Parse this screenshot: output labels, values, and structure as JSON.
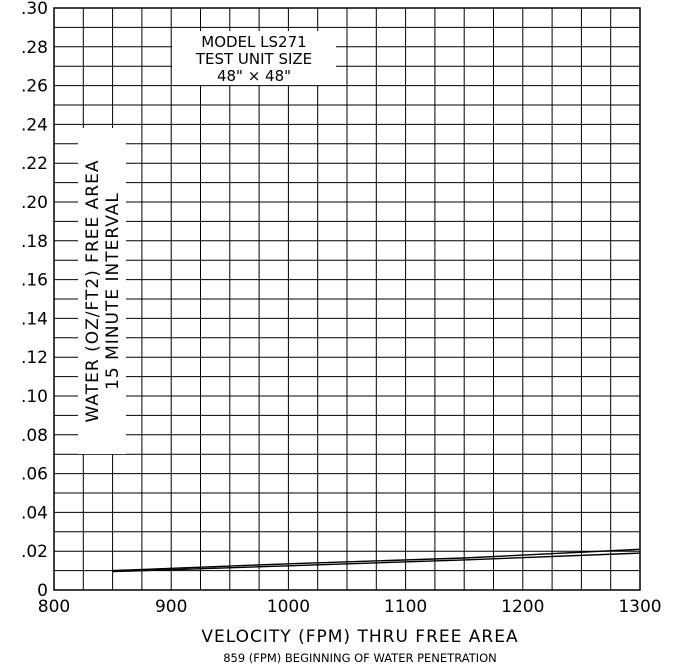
{
  "chart_data": {
    "type": "line",
    "title": "MODEL LS271",
    "subtitle_lines": [
      "TEST UNIT SIZE",
      "48\" × 48\""
    ],
    "ylabel_lines": [
      "WATER (OZ/FT2) FREE AREA",
      "15 MINUTE INTERVAL"
    ],
    "xlabel": "VELOCITY (FPM) THRU FREE AREA",
    "note": "859 (FPM) BEGINNING OF WATER PENETRATION",
    "xlim": [
      800,
      1300
    ],
    "ylim": [
      0,
      0.3
    ],
    "x_ticks": [
      800,
      900,
      1000,
      1100,
      1200,
      1300
    ],
    "x_tick_labels": [
      "800",
      "900",
      "1000",
      "1100",
      "1200",
      "1300"
    ],
    "y_ticks": [
      0,
      0.02,
      0.04,
      0.06,
      0.08,
      0.1,
      0.12,
      0.14,
      0.16,
      0.18,
      0.2,
      0.22,
      0.24,
      0.26,
      0.28,
      0.3
    ],
    "y_tick_labels": [
      "0",
      ".02",
      ".04",
      ".06",
      ".08",
      ".10",
      ".12",
      ".14",
      ".16",
      ".18",
      ".20",
      ".22",
      ".24",
      ".26",
      ".28",
      ".30"
    ],
    "x_minor_step": 25,
    "y_minor_step": 0.01,
    "grid": true,
    "series": [
      {
        "x": [
          850,
          1000,
          1150,
          1300
        ],
        "y": [
          0.01,
          0.0135,
          0.0165,
          0.021
        ]
      },
      {
        "x": [
          850,
          1000,
          1150,
          1300
        ],
        "y": [
          0.0095,
          0.0125,
          0.0155,
          0.019
        ]
      }
    ],
    "line_color": "#000000",
    "grid_color": "#000000"
  }
}
